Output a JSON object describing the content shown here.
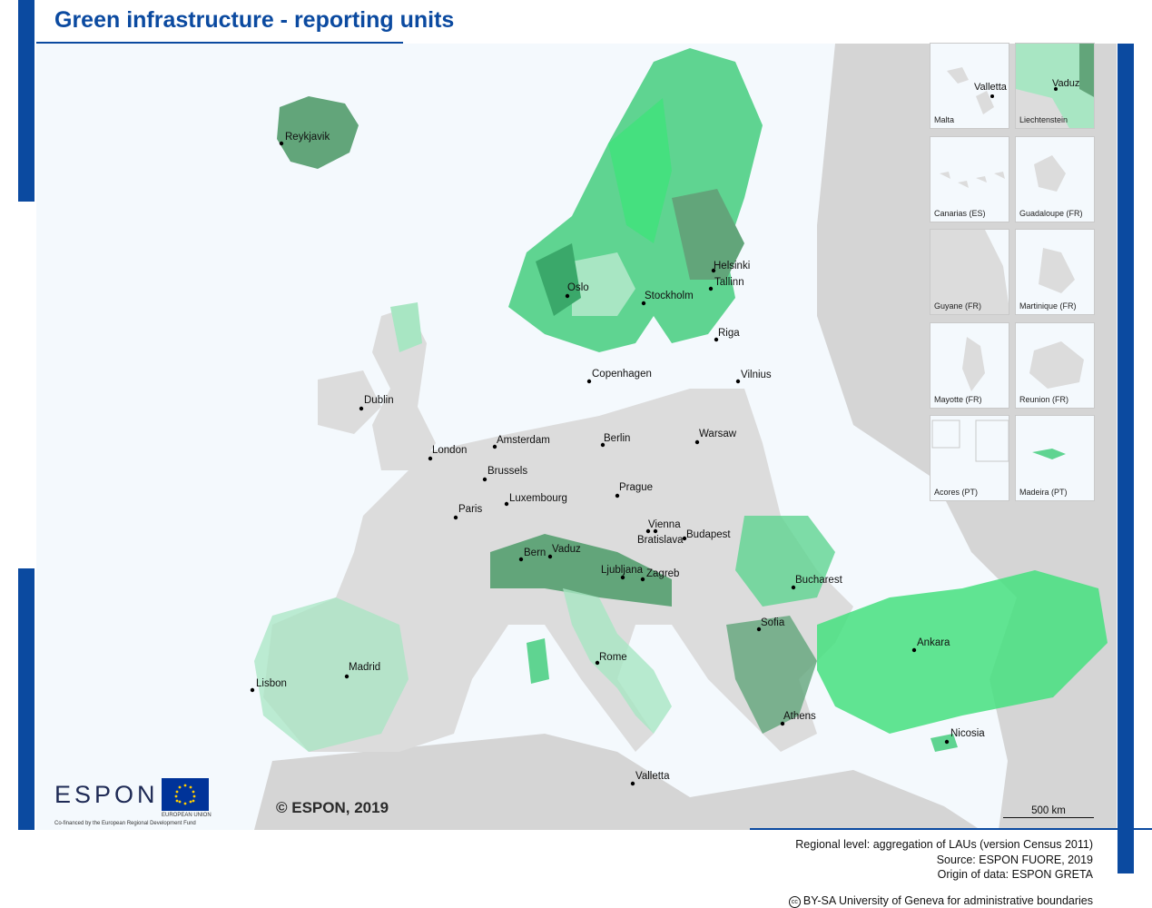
{
  "title": "Green infrastructure - reporting units",
  "colors": {
    "brand_blue": "#0b4aa0",
    "sea": "#f4f9fd",
    "land_outside": "#cfcfcf",
    "land_no_data": "#dcdcdc",
    "green_1": "#a8e6c3",
    "green_2": "#5fd491",
    "green_3": "#45e07f",
    "green_4": "#3aa86a",
    "green_5": "#62a57a"
  },
  "cities": [
    {
      "name": "Reykjavik"
    },
    {
      "name": "Helsinki"
    },
    {
      "name": "Tallinn"
    },
    {
      "name": "Oslo"
    },
    {
      "name": "Stockholm"
    },
    {
      "name": "Riga"
    },
    {
      "name": "Copenhagen"
    },
    {
      "name": "Vilnius"
    },
    {
      "name": "Dublin"
    },
    {
      "name": "London"
    },
    {
      "name": "Amsterdam"
    },
    {
      "name": "Berlin"
    },
    {
      "name": "Warsaw"
    },
    {
      "name": "Brussels"
    },
    {
      "name": "Prague"
    },
    {
      "name": "Luxembourg"
    },
    {
      "name": "Paris"
    },
    {
      "name": "Vienna"
    },
    {
      "name": "Bratislava"
    },
    {
      "name": "Budapest"
    },
    {
      "name": "Bern"
    },
    {
      "name": "Vaduz"
    },
    {
      "name": "Ljubljana"
    },
    {
      "name": "Zagreb"
    },
    {
      "name": "Bucharest"
    },
    {
      "name": "Sofia"
    },
    {
      "name": "Ankara"
    },
    {
      "name": "Madrid"
    },
    {
      "name": "Lisbon"
    },
    {
      "name": "Rome"
    },
    {
      "name": "Athens"
    },
    {
      "name": "Nicosia"
    },
    {
      "name": "Valletta"
    }
  ],
  "insets": [
    {
      "label": "Malta",
      "city": "Valletta"
    },
    {
      "label": "Liechtenstein",
      "city": "Vaduz"
    },
    {
      "label": "Canarias (ES)",
      "city": ""
    },
    {
      "label": "Guadaloupe (FR)",
      "city": ""
    },
    {
      "label": "Guyane (FR)",
      "city": ""
    },
    {
      "label": "Martinique (FR)",
      "city": ""
    },
    {
      "label": "Mayotte (FR)",
      "city": ""
    },
    {
      "label": "Reunion (FR)",
      "city": ""
    },
    {
      "label": "Acores (PT)",
      "city": ""
    },
    {
      "label": "Madeira (PT)",
      "city": ""
    }
  ],
  "copyright": "© ESPON, 2019",
  "scale_bar": "500 km",
  "source_lines": [
    "Regional level: aggregation of LAUs (version Census 2011)",
    "Source: ESPON FUORE, 2019",
    "Origin of data: ESPON GRETA"
  ],
  "cc_icon": "cc",
  "cc_text": "BY-SA University of Geneva for administrative boundaries",
  "logo": {
    "espon": "ESPON",
    "espon_sub": "Co-financed by the European Regional Development Fund",
    "eu_label": "EUROPEAN UNION"
  }
}
